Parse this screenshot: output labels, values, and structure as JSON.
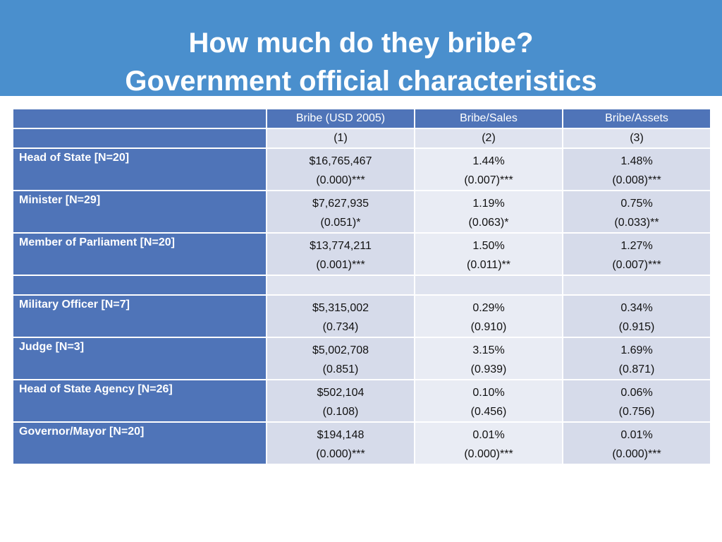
{
  "title": {
    "line1": "How much do they bribe?",
    "line2": "Government official characteristics"
  },
  "table": {
    "columns": [
      "Bribe (USD 2005)",
      "Bribe/Sales",
      "Bribe/Assets"
    ],
    "column_numbers": [
      "(1)",
      "(2)",
      "(3)"
    ],
    "rows_top": [
      {
        "label": "Head of State [N=20]",
        "cells": [
          {
            "value": "$16,765,467",
            "pvalue": "(0.000)***"
          },
          {
            "value": "1.44%",
            "pvalue": "(0.007)***"
          },
          {
            "value": "1.48%",
            "pvalue": "(0.008)***"
          }
        ]
      },
      {
        "label": "Minister [N=29]",
        "cells": [
          {
            "value": "$7,627,935",
            "pvalue": "(0.051)*"
          },
          {
            "value": "1.19%",
            "pvalue": "(0.063)*"
          },
          {
            "value": "0.75%",
            "pvalue": "(0.033)**"
          }
        ]
      },
      {
        "label": "Member of Parliament [N=20]",
        "cells": [
          {
            "value": "$13,774,211",
            "pvalue": "(0.001)***"
          },
          {
            "value": "1.50%",
            "pvalue": "(0.011)**"
          },
          {
            "value": "1.27%",
            "pvalue": "(0.007)***"
          }
        ]
      }
    ],
    "rows_bottom": [
      {
        "label": "Military Officer [N=7]",
        "cells": [
          {
            "value": "$5,315,002",
            "pvalue": "(0.734)"
          },
          {
            "value": "0.29%",
            "pvalue": "(0.910)"
          },
          {
            "value": "0.34%",
            "pvalue": "(0.915)"
          }
        ]
      },
      {
        "label": "Judge [N=3]",
        "cells": [
          {
            "value": "$5,002,708",
            "pvalue": "(0.851)"
          },
          {
            "value": "3.15%",
            "pvalue": "(0.939)"
          },
          {
            "value": "1.69%",
            "pvalue": "(0.871)"
          }
        ]
      },
      {
        "label": "Head of State Agency [N=26]",
        "cells": [
          {
            "value": "$502,104",
            "pvalue": "(0.108)"
          },
          {
            "value": "0.10%",
            "pvalue": "(0.456)"
          },
          {
            "value": "0.06%",
            "pvalue": "(0.756)"
          }
        ]
      },
      {
        "label": "Governor/Mayor [N=20]",
        "cells": [
          {
            "value": "$194,148",
            "pvalue": "(0.000)***"
          },
          {
            "value": "0.01%",
            "pvalue": "(0.000)***"
          },
          {
            "value": "0.01%",
            "pvalue": "(0.000)***"
          }
        ]
      }
    ]
  },
  "colors": {
    "title_bar": "#4a8fcd",
    "label_column": "#4f74b8",
    "cell_dark": "#d6dbea",
    "cell_light": "#e9ecf4"
  }
}
